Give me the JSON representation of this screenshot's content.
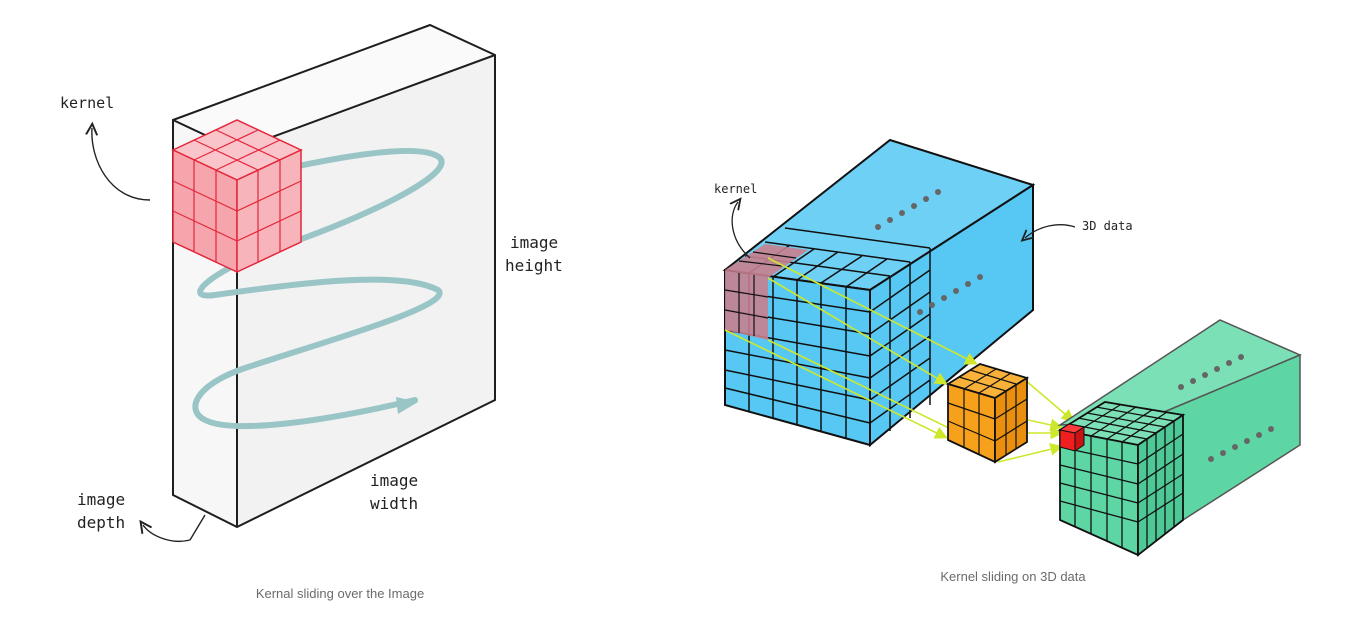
{
  "left_figure": {
    "labels": {
      "kernel": "kernel",
      "height_line1": "image",
      "height_line2": "height",
      "width_line1": "image",
      "width_line2": "width",
      "depth_line1": "image",
      "depth_line2": "depth"
    },
    "caption": "Kernal sliding over the Image",
    "colors": {
      "kernel_fill": "#f6a5ad",
      "kernel_stroke": "#e4263a",
      "spiral": "#9ac5c6",
      "volume_face": "#f0f0f0"
    }
  },
  "right_figure": {
    "labels": {
      "kernel": "kernel",
      "data": "3D data"
    },
    "caption": "Kernel sliding on 3D data",
    "colors": {
      "input_volume": "#56c8f3",
      "kernel_overlay": "#c7808f",
      "filter_cube": "#f7a01c",
      "output_volume": "#5ed6a4",
      "output_highlight": "#ef1f1f",
      "arrows": "#cde82c"
    }
  }
}
